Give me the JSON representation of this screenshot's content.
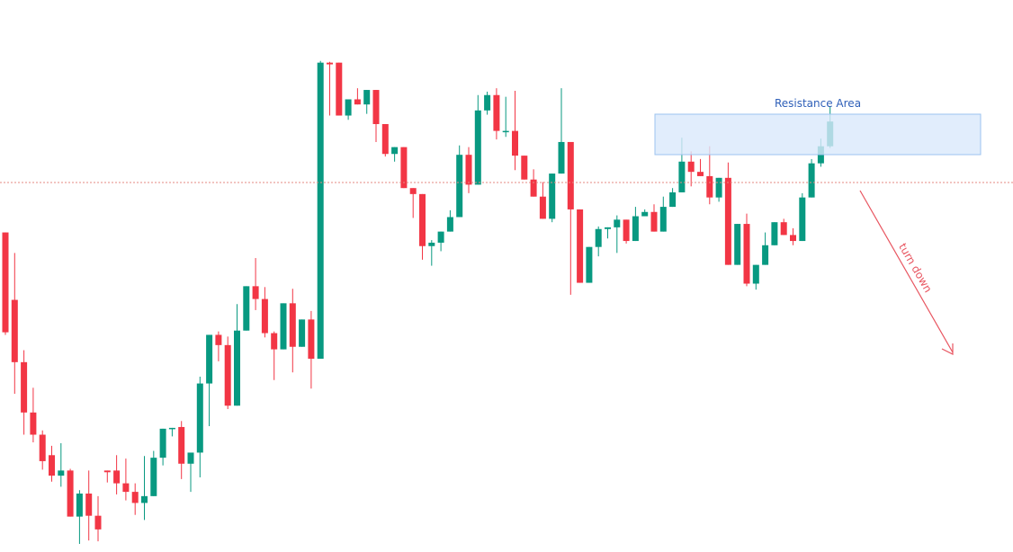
{
  "chart_data": {
    "type": "candlestick",
    "grid": false,
    "colors": {
      "up": "#089981",
      "down": "#f23645",
      "resistance_fill": "#d9e8fb",
      "resistance_stroke": "#9cc3ef",
      "resistance_text": "#2e5fb8",
      "reference_line": "#e58a82",
      "turn_down": "#e85560"
    },
    "candles": [
      [
        3.65,
        2.48,
        3.65,
        2.45
      ],
      [
        2.86,
        2.13,
        3.41,
        1.76
      ],
      [
        2.13,
        1.54,
        2.27,
        1.28
      ],
      [
        1.54,
        1.28,
        1.83,
        1.19
      ],
      [
        1.28,
        0.97,
        1.33,
        0.87
      ],
      [
        1.04,
        0.8,
        1.15,
        0.73
      ],
      [
        0.8,
        0.86,
        1.18,
        0.67
      ],
      [
        0.86,
        0.32,
        0.88,
        0.32
      ],
      [
        0.32,
        0.59,
        0.63,
        0.0
      ],
      [
        0.59,
        0.33,
        0.86,
        0.04
      ],
      [
        0.33,
        0.17,
        0.56,
        0.03
      ],
      [
        0.86,
        0.84,
        0.86,
        0.72
      ],
      [
        0.86,
        0.71,
        1.04,
        0.58
      ],
      [
        0.71,
        0.61,
        1.0,
        0.51
      ],
      [
        0.61,
        0.48,
        0.71,
        0.34
      ],
      [
        0.48,
        0.56,
        1.03,
        0.28
      ],
      [
        0.56,
        1.01,
        1.09,
        0.79
      ],
      [
        1.01,
        1.35,
        1.35,
        0.92
      ],
      [
        1.35,
        1.36,
        1.35,
        1.26
      ],
      [
        1.37,
        0.94,
        1.44,
        0.76
      ],
      [
        0.94,
        1.07,
        1.06,
        0.61
      ],
      [
        1.07,
        1.88,
        1.96,
        0.78
      ],
      [
        1.88,
        2.45,
        2.45,
        1.38
      ],
      [
        2.45,
        2.33,
        2.49,
        2.14
      ],
      [
        2.33,
        1.62,
        2.43,
        1.58
      ],
      [
        1.62,
        2.5,
        2.81,
        2.5
      ],
      [
        2.5,
        3.02,
        3.02,
        2.6
      ],
      [
        3.02,
        2.87,
        3.35,
        2.74
      ],
      [
        2.87,
        2.47,
        3.01,
        2.42
      ],
      [
        2.47,
        2.28,
        2.49,
        1.92
      ],
      [
        2.28,
        2.82,
        2.82,
        2.28
      ],
      [
        2.82,
        2.31,
        2.99,
        2.01
      ],
      [
        2.31,
        2.63,
        2.63,
        2.35
      ],
      [
        2.63,
        2.17,
        2.73,
        1.82
      ],
      [
        2.17,
        5.64,
        5.66,
        5.64
      ],
      [
        5.64,
        5.62,
        5.65,
        5.02
      ],
      [
        5.64,
        5.02,
        5.54,
        5.1
      ],
      [
        5.02,
        5.21,
        5.17,
        4.97
      ],
      [
        5.21,
        5.15,
        5.34,
        5.15
      ],
      [
        5.15,
        5.32,
        5.24,
        5.04
      ],
      [
        5.32,
        4.92,
        5.25,
        4.71
      ],
      [
        4.92,
        4.57,
        4.81,
        4.54
      ],
      [
        4.57,
        4.65,
        4.48,
        4.63
      ],
      [
        4.65,
        4.17,
        4.42,
        4.17
      ],
      [
        4.17,
        4.1,
        4.17,
        3.82
      ],
      [
        4.1,
        3.49,
        3.56,
        3.33
      ],
      [
        3.49,
        3.53,
        3.56,
        3.26
      ],
      [
        3.53,
        3.66,
        3.49,
        3.43
      ],
      [
        3.66,
        3.83,
        3.91,
        3.85
      ],
      [
        3.83,
        4.56,
        4.67,
        4.58
      ],
      [
        4.56,
        4.21,
        4.65,
        4.11
      ],
      [
        4.21,
        5.08,
        5.26,
        4.26
      ],
      [
        5.08,
        5.26,
        5.3,
        5.03
      ],
      [
        5.26,
        4.84,
        5.34,
        4.74
      ],
      [
        4.84,
        4.84,
        5.24,
        4.77
      ],
      [
        4.84,
        4.55,
        5.31,
        4.38
      ],
      [
        4.55,
        4.27,
        4.44,
        4.27
      ],
      [
        4.27,
        4.07,
        4.39,
        4.21
      ],
      [
        4.07,
        3.81,
        4.24,
        3.81
      ],
      [
        3.81,
        4.34,
        4.34,
        3.77
      ],
      [
        4.34,
        4.71,
        5.34,
        4.61
      ],
      [
        4.71,
        3.92,
        4.71,
        2.92
      ],
      [
        3.92,
        3.06,
        3.82,
        3.06
      ],
      [
        3.06,
        3.48,
        3.35,
        3.27
      ],
      [
        3.48,
        3.69,
        3.72,
        3.37
      ],
      [
        3.69,
        3.71,
        3.58,
        3.58
      ],
      [
        3.71,
        3.8,
        3.85,
        3.41
      ],
      [
        3.8,
        3.55,
        3.75,
        3.52
      ],
      [
        3.55,
        3.84,
        3.95,
        3.62
      ],
      [
        3.84,
        3.89,
        3.92,
        3.89
      ],
      [
        3.89,
        3.66,
        3.98,
        3.66
      ],
      [
        3.66,
        3.95,
        4.07,
        3.8
      ],
      [
        3.95,
        4.12,
        4.17,
        3.99
      ],
      [
        4.12,
        4.48,
        4.76,
        4.33
      ],
      [
        4.48,
        4.36,
        4.6,
        4.19
      ],
      [
        4.36,
        4.31,
        4.51,
        4.32
      ],
      [
        4.31,
        4.06,
        4.66,
        3.98
      ],
      [
        4.06,
        4.29,
        4.27,
        4.01
      ],
      [
        4.29,
        3.27,
        4.47,
        3.4
      ],
      [
        3.27,
        3.75,
        3.33,
        3.61
      ],
      [
        3.75,
        3.05,
        3.87,
        3.02
      ],
      [
        3.05,
        3.27,
        3.15,
        2.98
      ],
      [
        3.27,
        3.5,
        3.65,
        3.35
      ],
      [
        3.5,
        3.77,
        3.66,
        3.57
      ],
      [
        3.77,
        3.62,
        3.73,
        3.81
      ],
      [
        3.62,
        3.55,
        3.7,
        3.5
      ],
      [
        3.55,
        4.06,
        4.11,
        3.68
      ],
      [
        4.06,
        4.46,
        4.51,
        4.2
      ],
      [
        4.46,
        4.66,
        4.75,
        4.42
      ],
      [
        4.66,
        4.95,
        5.12,
        4.64
      ]
    ],
    "resistance": {
      "label": "Resistance Area"
    },
    "annotation": {
      "label": "turn down"
    }
  }
}
